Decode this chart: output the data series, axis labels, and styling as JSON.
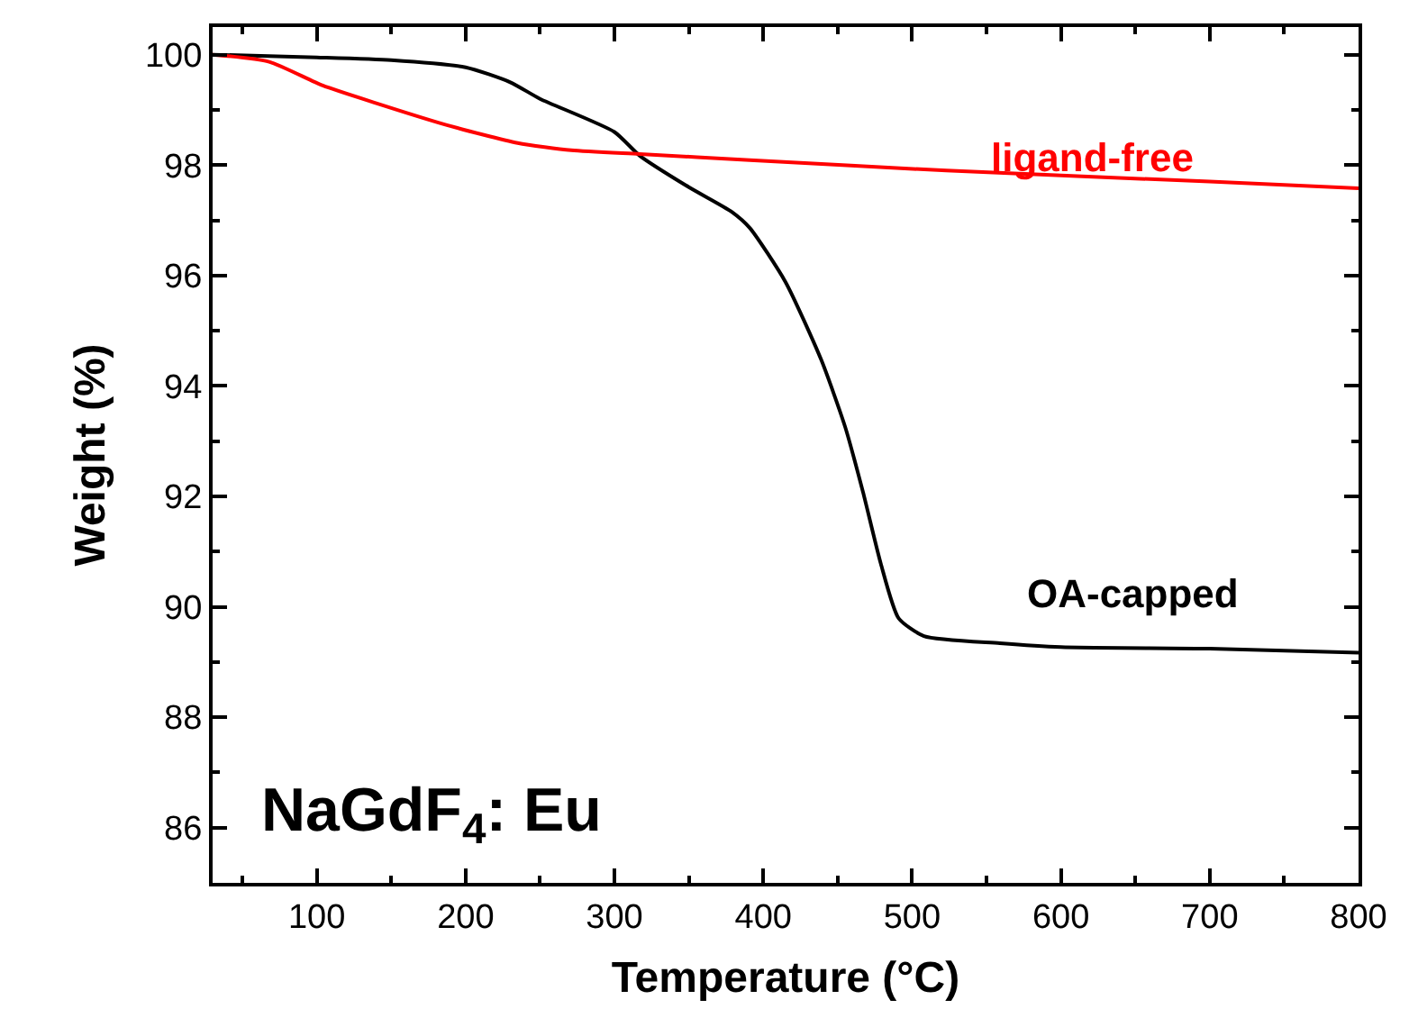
{
  "chart_data": {
    "type": "line",
    "xlabel": "Temperature (°C)",
    "ylabel": "Weight (%)",
    "xlim": [
      30,
      800
    ],
    "ylim": [
      85,
      100.5
    ],
    "xticks": [
      100,
      200,
      300,
      400,
      500,
      600,
      700,
      800
    ],
    "yticks": [
      86,
      88,
      90,
      92,
      94,
      96,
      98,
      100
    ],
    "marker": "none",
    "line_style": "solid",
    "series": [
      {
        "name": "OA-capped",
        "color": "#000000",
        "x": [
          30,
          100,
          150,
          200,
          230,
          250,
          300,
          317,
          350,
          379,
          391,
          415,
          439,
          455,
          467,
          479,
          491,
          508,
          559,
          600,
          700,
          800
        ],
        "values": [
          100,
          99.95,
          99.9,
          99.77,
          99.5,
          99.2,
          98.6,
          98.17,
          97.6,
          97.15,
          96.86,
          95.88,
          94.47,
          93.26,
          92.08,
          90.78,
          89.79,
          89.47,
          89.34,
          89.27,
          89.24,
          89.17
        ]
      },
      {
        "name": "ligand-free",
        "color": "#ff0000",
        "x": [
          30,
          68,
          104,
          140,
          188,
          235,
          271,
          317,
          391,
          523,
          700,
          800
        ],
        "values": [
          100,
          99.87,
          99.44,
          99.12,
          98.72,
          98.4,
          98.27,
          98.2,
          98.09,
          97.9,
          97.7,
          97.58
        ]
      }
    ],
    "annotations": [
      "NaGdF$_{4}$: Eu"
    ]
  }
}
